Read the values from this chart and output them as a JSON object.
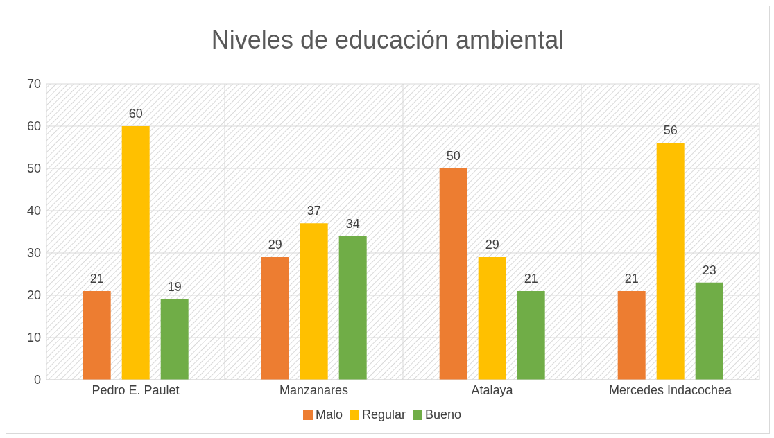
{
  "chart_data": {
    "type": "bar",
    "title": "Niveles de educación ambiental",
    "categories": [
      "Pedro E. Paulet",
      "Manzanares",
      "Atalaya",
      "Mercedes Indacochea"
    ],
    "series": [
      {
        "name": "Malo",
        "color": "#ed7d31",
        "values": [
          21,
          29,
          50,
          21
        ]
      },
      {
        "name": "Regular",
        "color": "#ffc000",
        "values": [
          60,
          37,
          29,
          56
        ]
      },
      {
        "name": "Bueno",
        "color": "#70ad47",
        "values": [
          19,
          34,
          21,
          23
        ]
      }
    ],
    "ylim": [
      0,
      70
    ],
    "yticks": [
      0,
      10,
      20,
      30,
      40,
      50,
      60,
      70
    ],
    "grid": true,
    "legend": "bottom",
    "data_labels": true
  }
}
